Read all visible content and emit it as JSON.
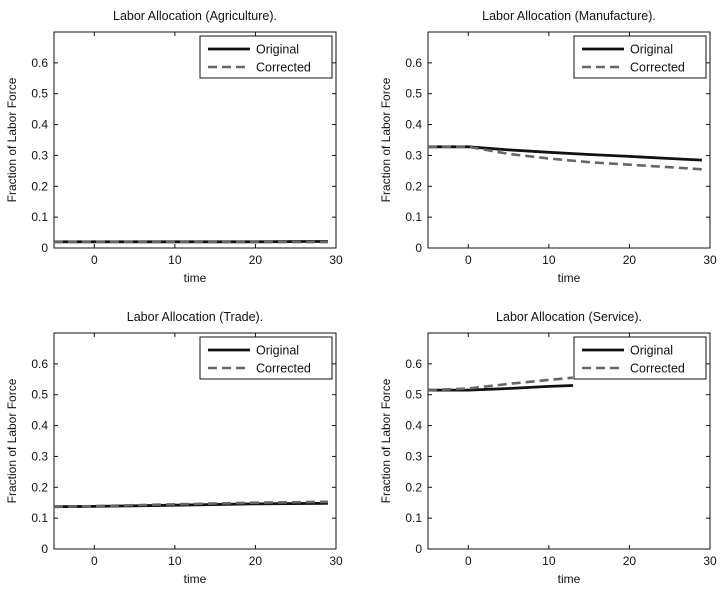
{
  "figure": {
    "colors": {
      "original": "#111111",
      "corrected": "#666666",
      "axes": "#111111"
    }
  },
  "chart_data": [
    {
      "type": "line",
      "title": "Labor Allocation (Agriculture).",
      "xlabel": "time",
      "ylabel": "Fraction of Labor Force",
      "xlim": [
        -5,
        30
      ],
      "ylim": [
        0,
        0.7
      ],
      "xticks": [
        "0",
        "10",
        "20",
        "30"
      ],
      "yticks": [
        "0",
        "0.1",
        "0.2",
        "0.3",
        "0.4",
        "0.5",
        "0.6"
      ],
      "grid": false,
      "legend": "top-right",
      "series": [
        {
          "name": "Original",
          "style": "solid",
          "x": [
            -5,
            0,
            10,
            20,
            26,
            29
          ],
          "y": [
            0.02,
            0.02,
            0.02,
            0.02,
            0.021,
            0.021
          ]
        },
        {
          "name": "Corrected",
          "style": "dashed",
          "x": [
            -5,
            0,
            10,
            20,
            29
          ],
          "y": [
            0.02,
            0.02,
            0.019,
            0.019,
            0.019
          ]
        }
      ]
    },
    {
      "type": "line",
      "title": "Labor Allocation (Manufacture).",
      "xlabel": "time",
      "ylabel": "Fraction of Labor Force",
      "xlim": [
        -5,
        30
      ],
      "ylim": [
        0,
        0.7
      ],
      "xticks": [
        "0",
        "10",
        "20",
        "30"
      ],
      "yticks": [
        "0",
        "0.1",
        "0.2",
        "0.3",
        "0.4",
        "0.5",
        "0.6"
      ],
      "grid": false,
      "legend": "top-right",
      "series": [
        {
          "name": "Original",
          "style": "solid",
          "x": [
            -5,
            0,
            5,
            10,
            15,
            20,
            25,
            29
          ],
          "y": [
            0.328,
            0.328,
            0.318,
            0.31,
            0.303,
            0.297,
            0.29,
            0.285
          ]
        },
        {
          "name": "Corrected",
          "style": "dashed",
          "x": [
            -5,
            0,
            5,
            10,
            15,
            20,
            25,
            29
          ],
          "y": [
            0.328,
            0.328,
            0.305,
            0.29,
            0.278,
            0.27,
            0.262,
            0.255
          ]
        }
      ]
    },
    {
      "type": "line",
      "title": "Labor Allocation (Trade).",
      "xlabel": "time",
      "ylabel": "Fraction of Labor Force",
      "xlim": [
        -5,
        30
      ],
      "ylim": [
        0,
        0.7
      ],
      "xticks": [
        "0",
        "10",
        "20",
        "30"
      ],
      "yticks": [
        "0",
        "0.1",
        "0.2",
        "0.3",
        "0.4",
        "0.5",
        "0.6"
      ],
      "grid": false,
      "legend": "top-right",
      "series": [
        {
          "name": "Original",
          "style": "solid",
          "x": [
            -5,
            0,
            10,
            20,
            29
          ],
          "y": [
            0.137,
            0.138,
            0.142,
            0.146,
            0.148
          ]
        },
        {
          "name": "Corrected",
          "style": "dashed",
          "x": [
            -5,
            0,
            10,
            20,
            29
          ],
          "y": [
            0.137,
            0.139,
            0.145,
            0.15,
            0.153
          ]
        }
      ]
    },
    {
      "type": "line",
      "title": "Labor Allocation (Service).",
      "xlabel": "time",
      "ylabel": "Fraction of Labor Force",
      "xlim": [
        -5,
        30
      ],
      "ylim": [
        0,
        0.7
      ],
      "xticks": [
        "0",
        "10",
        "20",
        "30"
      ],
      "yticks": [
        "0",
        "0.1",
        "0.2",
        "0.3",
        "0.4",
        "0.5",
        "0.6"
      ],
      "grid": false,
      "legend": "top-right",
      "series": [
        {
          "name": "Original",
          "style": "solid",
          "x": [
            -5,
            0,
            5,
            10,
            13
          ],
          "y": [
            0.515,
            0.515,
            0.52,
            0.527,
            0.53
          ]
        },
        {
          "name": "Corrected",
          "style": "dashed",
          "x": [
            -5,
            0,
            5,
            10,
            13
          ],
          "y": [
            0.515,
            0.52,
            0.535,
            0.548,
            0.555
          ]
        }
      ]
    }
  ]
}
